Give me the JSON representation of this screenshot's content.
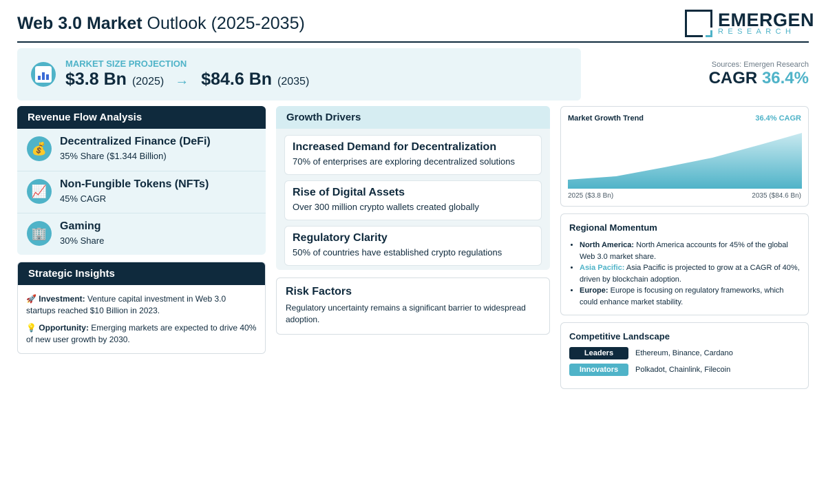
{
  "header": {
    "title_bold": "Web 3.0 Market",
    "title_rest": " Outlook (2025-2035)",
    "logo_name": "EMERGEN",
    "logo_sub": "RESEARCH"
  },
  "projection": {
    "label": "MARKET SIZE PROJECTION",
    "start_value": "$3.8 Bn",
    "start_year": "(2025)",
    "arrow": "→",
    "end_value": "$84.6 Bn",
    "end_year": "(2035)"
  },
  "summary": {
    "sources": "Sources: Emergen Research",
    "cagr_label": "CAGR ",
    "cagr_value": "36.4%"
  },
  "revenue": {
    "title": "Revenue Flow Analysis",
    "items": [
      {
        "icon": "money-bag-icon",
        "name": "Decentralized Finance (DeFi)",
        "sub": "35% Share ($1.344 Billion)"
      },
      {
        "icon": "chart-up-icon",
        "name": "Non-Fungible Tokens (NFTs)",
        "sub": "45% CAGR"
      },
      {
        "icon": "office-icon",
        "name": "Gaming",
        "sub": "30% Share"
      }
    ]
  },
  "insights": {
    "title": "Strategic Insights",
    "items": [
      {
        "icon": "rocket-icon",
        "label": "Investment:",
        "text": " Venture capital investment in Web 3.0 startups reached $10 Billion in 2023."
      },
      {
        "icon": "lightbulb-icon",
        "label": "Opportunity:",
        "text": " Emerging markets are expected to drive 40% of new user growth by 2030."
      }
    ]
  },
  "drivers": {
    "title": "Growth Drivers",
    "items": [
      {
        "heading": "Increased Demand for Decentralization",
        "detail": "70% of enterprises are exploring decentralized solutions"
      },
      {
        "heading": "Rise of Digital Assets",
        "detail": "Over 300 million crypto wallets created globally"
      },
      {
        "heading": "Regulatory Clarity",
        "detail": "50% of countries have established crypto regulations"
      }
    ]
  },
  "risk": {
    "title": "Risk Factors",
    "text": "Regulatory uncertainty remains a significant barrier to widespread adoption."
  },
  "trend": {
    "title": "Market Growth Trend",
    "cagr": "36.4% CAGR",
    "left_label": "2025 ($3.8 Bn)",
    "right_label": "2035 ($84.6 Bn)"
  },
  "regional": {
    "title": "Regional Momentum",
    "items": [
      {
        "region": "North America:",
        "text": " North America accounts for 45% of the global Web 3.0 market share."
      },
      {
        "region": "Asia Pacific:",
        "text": " Asia Pacific is projected to grow at a CAGR of 40%, driven by blockchain adoption."
      },
      {
        "region": "Europe:",
        "text": " Europe is focusing on regulatory frameworks, which could enhance market stability."
      }
    ]
  },
  "competitive": {
    "title": "Competitive Landscape",
    "rows": [
      {
        "badge": "Leaders",
        "companies": "Ethereum, Binance, Cardano"
      },
      {
        "badge": "Innovators",
        "companies": "Polkadot, Chainlink, Filecoin"
      }
    ]
  },
  "colors": {
    "navy": "#0f2a3d",
    "teal": "#4fb3c8",
    "light_bg": "#eaf5f8"
  }
}
